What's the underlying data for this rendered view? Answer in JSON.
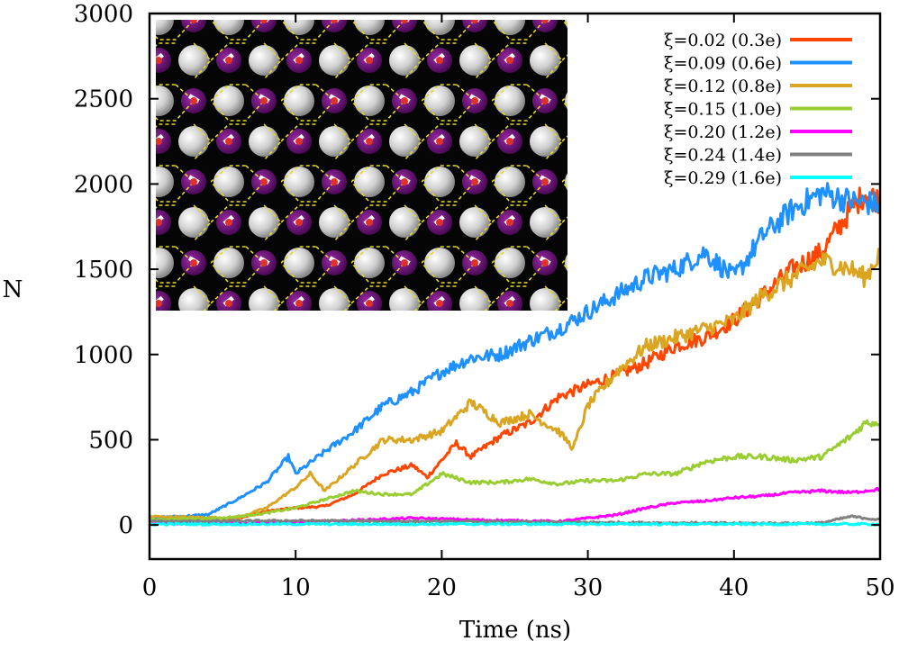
{
  "chart_data": {
    "type": "line",
    "title": "",
    "xlabel": "Time (ns)",
    "ylabel": "N",
    "xlim": [
      0,
      50
    ],
    "ylim": [
      -200,
      3000
    ],
    "xticks": [
      {
        "value": 0,
        "label": "0"
      },
      {
        "value": 10,
        "label": "10"
      },
      {
        "value": 20,
        "label": "20"
      },
      {
        "value": 30,
        "label": "30"
      },
      {
        "value": 40,
        "label": "40"
      },
      {
        "value": 50,
        "label": "50"
      }
    ],
    "yticks": [
      {
        "value": 0,
        "label": "0"
      },
      {
        "value": 500,
        "label": "500"
      },
      {
        "value": 1000,
        "label": "1000"
      },
      {
        "value": 1500,
        "label": "1500"
      },
      {
        "value": 2000,
        "label": "2000"
      },
      {
        "value": 2500,
        "label": "2500"
      },
      {
        "value": 3000,
        "label": "3000"
      }
    ],
    "legend_position": "top-right",
    "inset": "molecular snapshot of hexagonal ice-like water layer on a surface (top-right of plot area, upper-left inset)",
    "series": [
      {
        "name": "ξ=0.02 (0.3e)",
        "color": "#ff4500",
        "x": [
          0,
          5,
          8,
          10,
          12,
          14,
          16,
          18,
          19,
          20,
          21,
          22,
          24,
          26,
          28,
          30,
          32,
          34,
          36,
          38,
          40,
          42,
          44,
          46,
          48,
          49,
          50
        ],
        "y": [
          30,
          20,
          80,
          100,
          110,
          180,
          300,
          350,
          280,
          380,
          480,
          400,
          520,
          600,
          750,
          820,
          880,
          950,
          1050,
          1100,
          1200,
          1350,
          1500,
          1600,
          1850,
          1950,
          1900
        ]
      },
      {
        "name": "ξ=0.09 (0.6e)",
        "color": "#1e90ff",
        "x": [
          0,
          4,
          6,
          8,
          9.5,
          10,
          12,
          14,
          16,
          18,
          20,
          22,
          24,
          26,
          28,
          30,
          32,
          34,
          36,
          38,
          40,
          42,
          44,
          46,
          48,
          50
        ],
        "y": [
          40,
          60,
          150,
          250,
          400,
          300,
          430,
          550,
          700,
          780,
          900,
          980,
          1000,
          1080,
          1150,
          1250,
          1350,
          1450,
          1500,
          1600,
          1450,
          1700,
          1850,
          1950,
          1900,
          1880
        ]
      },
      {
        "name": "ξ=0.12 (0.8e)",
        "color": "#daa520",
        "x": [
          0,
          6,
          8,
          10,
          11,
          12,
          14,
          16,
          18,
          20,
          22,
          24,
          26,
          28,
          29,
          30,
          32,
          34,
          36,
          38,
          40,
          42,
          44,
          46,
          48,
          49,
          50
        ],
        "y": [
          50,
          40,
          100,
          220,
          300,
          200,
          350,
          500,
          500,
          550,
          720,
          600,
          650,
          550,
          450,
          700,
          900,
          1050,
          1100,
          1150,
          1200,
          1350,
          1450,
          1550,
          1500,
          1450,
          1600
        ]
      },
      {
        "name": "ξ=0.15 (1.0e)",
        "color": "#9acd32",
        "x": [
          0,
          5,
          8,
          10,
          12,
          14,
          16,
          18,
          20,
          22,
          24,
          26,
          28,
          30,
          32,
          34,
          36,
          38,
          40,
          42,
          44,
          46,
          48,
          49,
          50
        ],
        "y": [
          30,
          40,
          70,
          100,
          150,
          200,
          180,
          180,
          300,
          250,
          250,
          270,
          240,
          260,
          260,
          300,
          300,
          370,
          400,
          400,
          380,
          400,
          520,
          600,
          600
        ]
      },
      {
        "name": "ξ=0.20 (1.2e)",
        "color": "#ff00ff",
        "x": [
          0,
          10,
          18,
          22,
          28,
          30,
          32,
          34,
          36,
          38,
          40,
          42,
          44,
          46,
          48,
          50
        ],
        "y": [
          10,
          15,
          40,
          30,
          20,
          40,
          60,
          100,
          130,
          140,
          160,
          170,
          190,
          200,
          190,
          210
        ]
      },
      {
        "name": "ξ=0.24 (1.4e)",
        "color": "#808080",
        "x": [
          0,
          10,
          20,
          30,
          40,
          44,
          46,
          48,
          50
        ],
        "y": [
          20,
          25,
          20,
          15,
          10,
          10,
          12,
          50,
          30
        ]
      },
      {
        "name": "ξ=0.29 (1.6e)",
        "color": "#00ffff",
        "x": [
          0,
          10,
          20,
          30,
          40,
          50
        ],
        "y": [
          5,
          5,
          5,
          5,
          5,
          5
        ]
      }
    ]
  }
}
